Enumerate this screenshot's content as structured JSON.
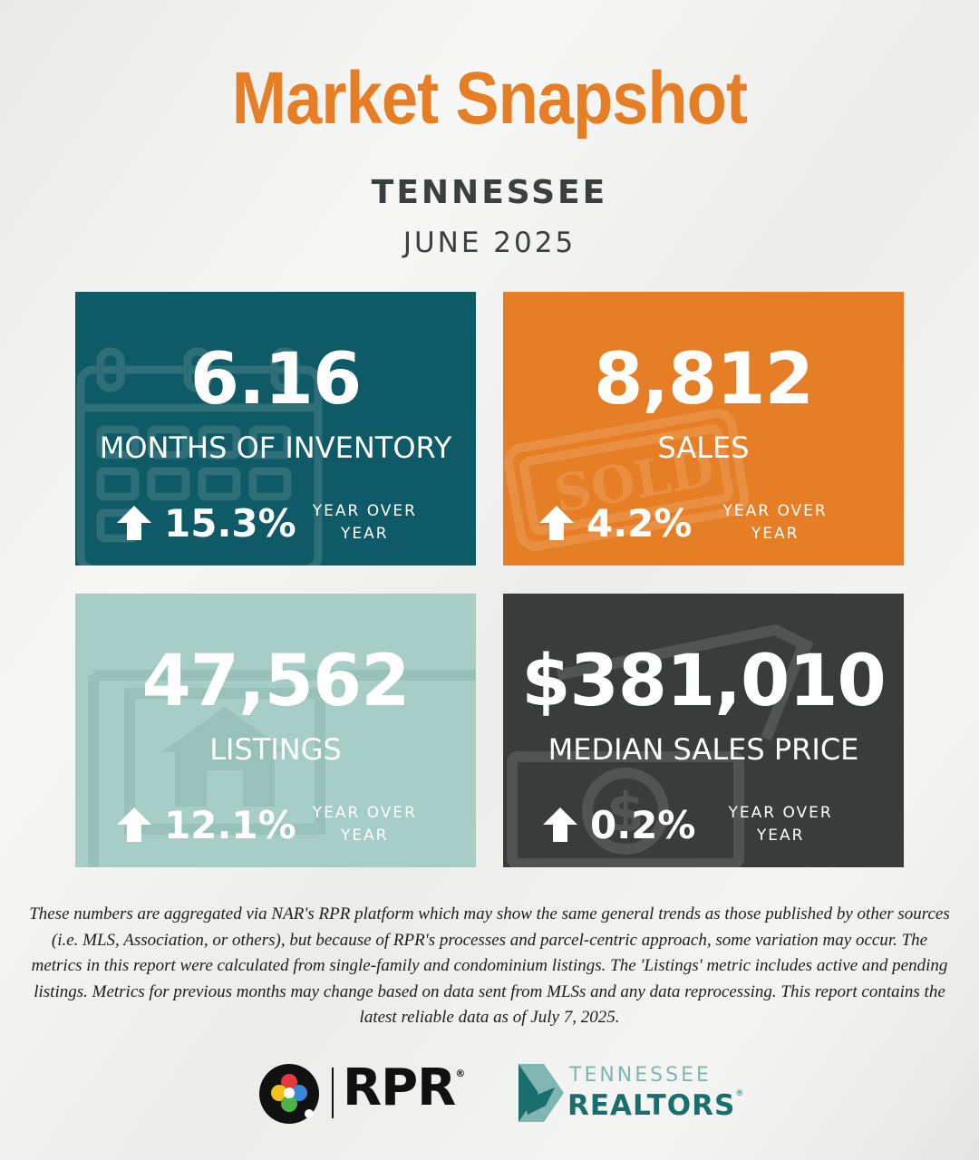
{
  "header": {
    "title": "Market Snapshot",
    "state": "TENNESSEE",
    "period": "JUNE 2025"
  },
  "metrics": [
    {
      "value": "6.16",
      "label": "MONTHS OF INVENTORY",
      "change": "15.3%",
      "change_label": "YEAR OVER\nYEAR",
      "direction": "up",
      "icon": "calendar-icon",
      "color": "#0e5a66"
    },
    {
      "value": "8,812",
      "label": "SALES",
      "change": "4.2%",
      "change_label": "YEAR OVER\nYEAR",
      "direction": "up",
      "icon": "sold-stamp-icon",
      "stamp_text": "SOLD",
      "color": "#e57e25"
    },
    {
      "value": "47,562",
      "label": "LISTINGS",
      "change": "12.1%",
      "change_label": "YEAR OVER\nYEAR",
      "direction": "up",
      "icon": "house-sign-icon",
      "color": "#a6cdc6"
    },
    {
      "value": "$381,010",
      "label": "MEDIAN SALES PRICE",
      "change": "0.2%",
      "change_label": "YEAR OVER\nYEAR",
      "direction": "up",
      "icon": "dollar-bill-icon",
      "color": "#383c3b"
    }
  ],
  "disclaimer": "These numbers are aggregated via NAR's RPR platform which may show the same general trends as those published by other sources (i.e. MLS, Association, or others), but because of RPR's processes and parcel-centric approach, some variation may occur. The metrics in this report were calculated from single-family and condominium listings. The 'Listings' metric includes active and pending listings. Metrics for previous months may change based on data sent from MLSs and any data reprocessing. This report contains the latest reliable data as of July 7, 2025.",
  "logos": {
    "rpr": "RPR",
    "tn_line1": "TENNESSEE",
    "tn_line2": "REALTORS",
    "colors": {
      "title": "#e57e25",
      "text": "#3a3f3f",
      "tn_teal": "#1a6f6e",
      "tn_light": "#7fb6b1"
    }
  }
}
